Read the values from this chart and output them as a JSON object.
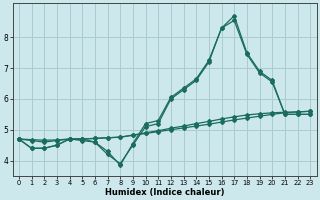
{
  "xlabel": "Humidex (Indice chaleur)",
  "background_color": "#cce8ec",
  "grid_color": "#aacccc",
  "line_color": "#1a6b60",
  "xlim": [
    -0.5,
    23.5
  ],
  "ylim": [
    3.5,
    9.1
  ],
  "yticks": [
    4,
    5,
    6,
    7,
    8
  ],
  "xticks": [
    0,
    1,
    2,
    3,
    4,
    5,
    6,
    7,
    8,
    9,
    10,
    11,
    12,
    13,
    14,
    15,
    16,
    17,
    18,
    19,
    20,
    21,
    22,
    23
  ],
  "series": [
    [
      4.7,
      4.4,
      4.4,
      4.5,
      4.7,
      4.7,
      4.6,
      4.2,
      3.9,
      4.5,
      5.1,
      5.2,
      6.0,
      6.3,
      6.6,
      7.2,
      8.3,
      8.7,
      7.5,
      6.9,
      6.6,
      5.5,
      5.5,
      5.5
    ],
    [
      4.7,
      4.4,
      4.4,
      4.5,
      4.7,
      4.65,
      4.6,
      4.3,
      3.85,
      4.55,
      5.2,
      5.3,
      6.05,
      6.35,
      6.65,
      7.25,
      8.3,
      8.55,
      7.45,
      6.85,
      6.55,
      5.5,
      5.5,
      5.5
    ],
    [
      4.7,
      4.65,
      4.6,
      4.65,
      4.7,
      4.7,
      4.72,
      4.74,
      4.76,
      4.82,
      4.88,
      4.94,
      5.0,
      5.06,
      5.12,
      5.18,
      5.25,
      5.32,
      5.38,
      5.44,
      5.5,
      5.55,
      5.58,
      5.6
    ],
    [
      4.7,
      4.68,
      4.66,
      4.67,
      4.7,
      4.7,
      4.72,
      4.74,
      4.76,
      4.83,
      4.9,
      4.97,
      5.05,
      5.12,
      5.2,
      5.27,
      5.35,
      5.42,
      5.48,
      5.52,
      5.55,
      5.57,
      5.58,
      5.6
    ]
  ]
}
